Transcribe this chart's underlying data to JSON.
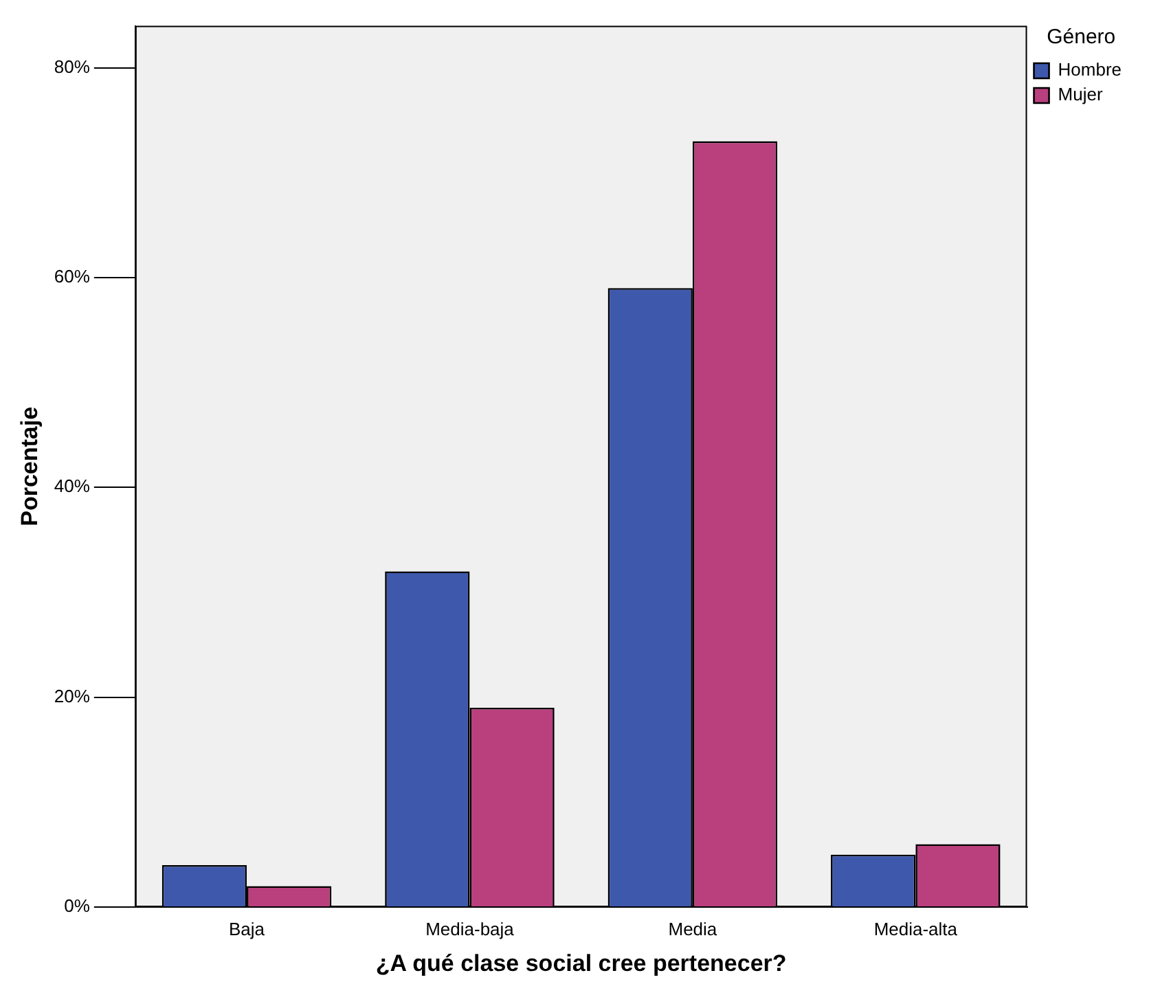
{
  "chart_data": {
    "type": "bar",
    "xlabel": "¿A qué clase social cree pertenecer?",
    "ylabel": "Porcentaje",
    "legend_title": "Género",
    "categories": [
      "Baja",
      "Media-baja",
      "Media",
      "Media-alta"
    ],
    "series": [
      {
        "name": "Hombre",
        "color": "#3e58ac",
        "values": [
          4,
          32,
          59,
          5
        ]
      },
      {
        "name": "Mujer",
        "color": "#b93f7d",
        "values": [
          2,
          19,
          73,
          6
        ]
      }
    ],
    "ylim": [
      0,
      84
    ],
    "yticks": [
      {
        "value": 0,
        "label": "0%"
      },
      {
        "value": 20,
        "label": "20%"
      },
      {
        "value": 40,
        "label": "40%"
      },
      {
        "value": 60,
        "label": "60%"
      },
      {
        "value": 80,
        "label": "80%"
      }
    ],
    "grid": false,
    "legend": "top right"
  }
}
